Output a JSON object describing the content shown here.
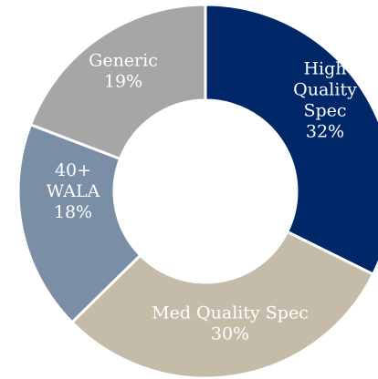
{
  "chart_data": {
    "type": "pie",
    "donut": true,
    "title": "",
    "slices": [
      {
        "label_lines": [
          "High",
          "Quality",
          "Spec"
        ],
        "value": 32,
        "value_label": "32%",
        "color": "#002868"
      },
      {
        "label_lines": [
          "Med Quality Spec"
        ],
        "value": 30,
        "value_label": "30%",
        "color": "#c5bba9"
      },
      {
        "label_lines": [
          "40+",
          "WALA"
        ],
        "value": 18,
        "value_label": "18%",
        "color": "#7a8ea6"
      },
      {
        "label_lines": [
          "Generic"
        ],
        "value": 19,
        "value_label": "19%",
        "color": "#a6a6a6"
      }
    ]
  }
}
